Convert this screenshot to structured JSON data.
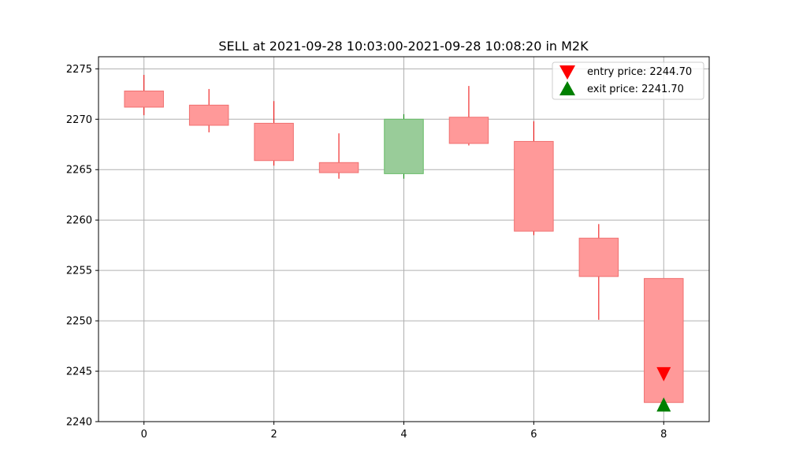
{
  "chart_data": {
    "type": "candlestick",
    "title": "SELL at 2021-09-28 10:03:00-2021-09-28 10:08:20 in M2K",
    "xlabel": "",
    "ylabel": "",
    "xlim": [
      -0.7,
      8.7
    ],
    "ylim": [
      2240,
      2276.2
    ],
    "x_ticks": [
      0,
      2,
      4,
      6,
      8
    ],
    "y_ticks": [
      2240,
      2245,
      2250,
      2255,
      2260,
      2265,
      2270,
      2275
    ],
    "grid": true,
    "legend_position": "top-right",
    "colors": {
      "down_body": "#ff9999",
      "down_edge": "#f07070",
      "down_wick": "#ee0000",
      "up_body": "#99cc99",
      "up_edge": "#66bb66",
      "up_wick": "#008000",
      "entry_marker": "#ff0000",
      "exit_marker": "#008000",
      "grid": "#b0b0b0"
    },
    "candles": [
      {
        "x": 0,
        "open": 2272.8,
        "high": 2274.4,
        "low": 2270.4,
        "close": 2271.2
      },
      {
        "x": 1,
        "open": 2271.4,
        "high": 2273.0,
        "low": 2268.7,
        "close": 2269.4
      },
      {
        "x": 2,
        "open": 2269.6,
        "high": 2271.8,
        "low": 2265.4,
        "close": 2265.9
      },
      {
        "x": 3,
        "open": 2265.7,
        "high": 2268.6,
        "low": 2264.1,
        "close": 2264.7
      },
      {
        "x": 4,
        "open": 2264.6,
        "high": 2270.5,
        "low": 2264.1,
        "close": 2270.0
      },
      {
        "x": 5,
        "open": 2270.2,
        "high": 2273.3,
        "low": 2267.4,
        "close": 2267.6
      },
      {
        "x": 6,
        "open": 2267.8,
        "high": 2269.8,
        "low": 2258.5,
        "close": 2258.9
      },
      {
        "x": 7,
        "open": 2258.2,
        "high": 2259.6,
        "low": 2250.1,
        "close": 2254.4
      },
      {
        "x": 8,
        "open": 2254.2,
        "high": 2254.2,
        "low": 2241.9,
        "close": 2241.9
      }
    ],
    "markers": [
      {
        "name": "entry",
        "label": "entry price: 2244.70",
        "x": 8,
        "y": 2244.7,
        "shape": "triangle-down"
      },
      {
        "name": "exit",
        "label": "exit price: 2241.70",
        "x": 8,
        "y": 2241.7,
        "shape": "triangle-up"
      }
    ]
  }
}
